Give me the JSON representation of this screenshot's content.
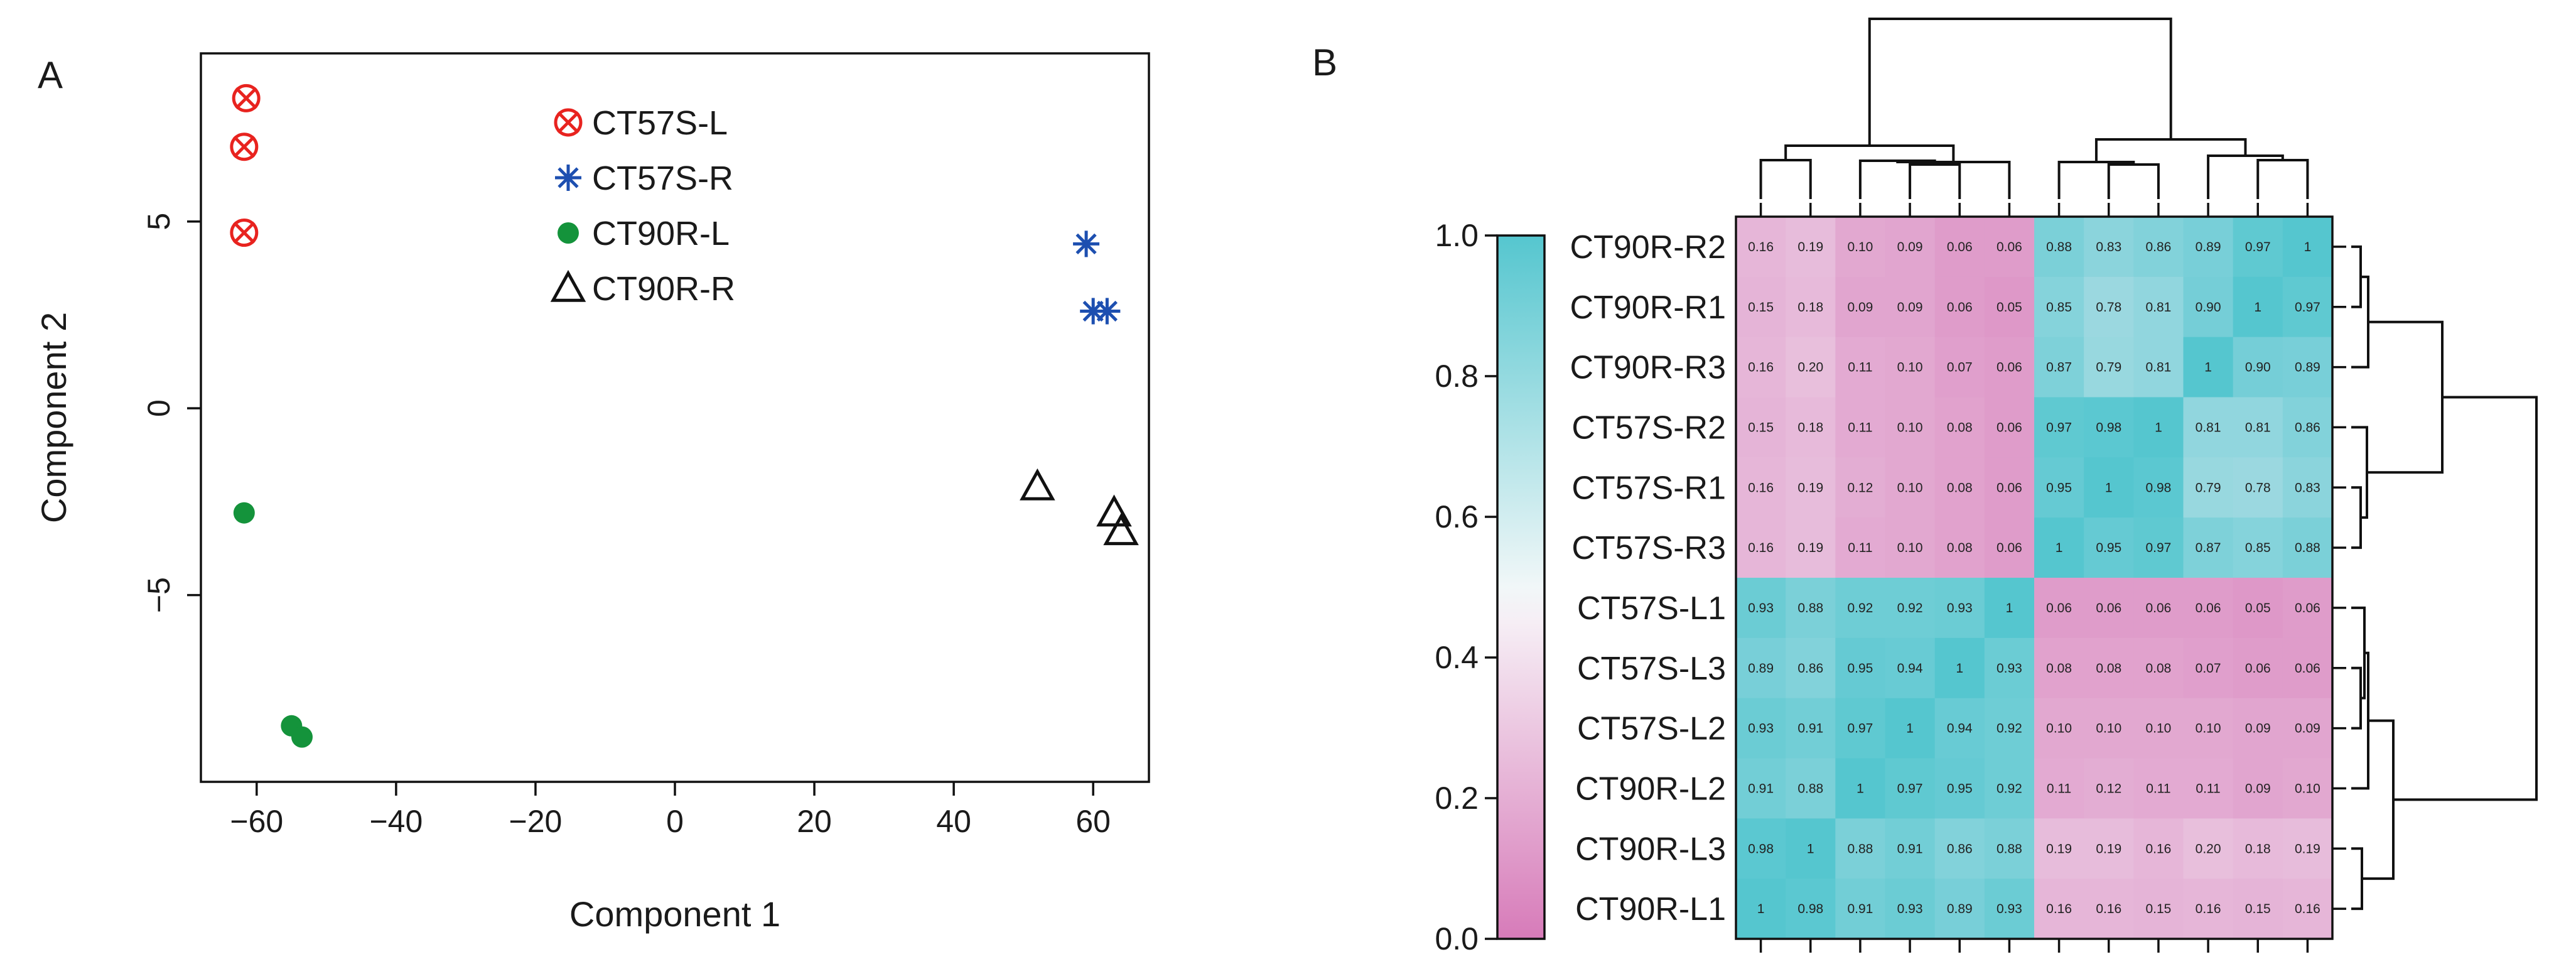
{
  "figure": {
    "panel_a_label": "A",
    "panel_b_label": "B"
  },
  "colors": {
    "s_l": "#e8231f",
    "s_r": "#1d4fb0",
    "r_l": "#14933b",
    "r_r": "#111111",
    "heat_low": "#d77bb9",
    "heat_mid": "#f4f0f6",
    "heat_high": "#55c6cf"
  },
  "chart_data": [
    {
      "type": "scatter",
      "panel": "A",
      "title": "",
      "xlabel": "Component 1",
      "ylabel": "Component 2",
      "xlim": [
        -68,
        68
      ],
      "ylim": [
        -10,
        9.5
      ],
      "xticks": [
        -60,
        -40,
        -20,
        0,
        20,
        40,
        60
      ],
      "yticks": [
        -5,
        0,
        5
      ],
      "grid": false,
      "legend_position": "top-center",
      "series": [
        {
          "name": "CT57S-L",
          "marker": "circle-x",
          "color": "#e8231f",
          "points": [
            [
              -61.5,
              8.3
            ],
            [
              -61.8,
              7.0
            ],
            [
              -61.8,
              4.7
            ]
          ]
        },
        {
          "name": "CT57S-R",
          "marker": "asterisk",
          "color": "#1d4fb0",
          "points": [
            [
              59.0,
              4.4
            ],
            [
              60.0,
              2.6
            ],
            [
              62.0,
              2.6
            ]
          ]
        },
        {
          "name": "CT90R-L",
          "marker": "filled-circle",
          "color": "#14933b",
          "points": [
            [
              -61.8,
              -2.8
            ],
            [
              -55.0,
              -8.5
            ],
            [
              -53.5,
              -8.8
            ]
          ]
        },
        {
          "name": "CT90R-R",
          "marker": "open-triangle",
          "color": "#111111",
          "points": [
            [
              52.0,
              -2.1
            ],
            [
              63.0,
              -2.8
            ],
            [
              64.0,
              -3.3
            ]
          ]
        }
      ]
    },
    {
      "type": "heatmap",
      "panel": "B",
      "title": "",
      "legend_position": "left",
      "colorbar_ticks": [
        "0.0",
        "0.2",
        "0.4",
        "0.6",
        "0.8",
        "1.0"
      ],
      "colorbar_range": [
        0.0,
        1.0
      ],
      "row_labels": [
        "CT90R-R2",
        "CT90R-R1",
        "CT90R-R3",
        "CT57S-R2",
        "CT57S-R1",
        "CT57S-R3",
        "CT57S-L1",
        "CT57S-L3",
        "CT57S-L2",
        "CT90R-L2",
        "CT90R-L3",
        "CT90R-L1"
      ],
      "values": [
        [
          "0.16",
          "0.19",
          "0.10",
          "0.09",
          "0.06",
          "0.06",
          "0.88",
          "0.83",
          "0.86",
          "0.89",
          "0.97",
          "1"
        ],
        [
          "0.15",
          "0.18",
          "0.09",
          "0.09",
          "0.06",
          "0.05",
          "0.85",
          "0.78",
          "0.81",
          "0.90",
          "1",
          "0.97"
        ],
        [
          "0.16",
          "0.20",
          "0.11",
          "0.10",
          "0.07",
          "0.06",
          "0.87",
          "0.79",
          "0.81",
          "1",
          "0.90",
          "0.89"
        ],
        [
          "0.15",
          "0.18",
          "0.11",
          "0.10",
          "0.08",
          "0.06",
          "0.97",
          "0.98",
          "1",
          "0.81",
          "0.81",
          "0.86"
        ],
        [
          "0.16",
          "0.19",
          "0.12",
          "0.10",
          "0.08",
          "0.06",
          "0.95",
          "1",
          "0.98",
          "0.79",
          "0.78",
          "0.83"
        ],
        [
          "0.16",
          "0.19",
          "0.11",
          "0.10",
          "0.08",
          "0.06",
          "1",
          "0.95",
          "0.97",
          "0.87",
          "0.85",
          "0.88"
        ],
        [
          "0.93",
          "0.88",
          "0.92",
          "0.92",
          "0.93",
          "1",
          "0.06",
          "0.06",
          "0.06",
          "0.06",
          "0.05",
          "0.06"
        ],
        [
          "0.89",
          "0.86",
          "0.95",
          "0.94",
          "1",
          "0.93",
          "0.08",
          "0.08",
          "0.08",
          "0.07",
          "0.06",
          "0.06"
        ],
        [
          "0.93",
          "0.91",
          "0.97",
          "1",
          "0.94",
          "0.92",
          "0.10",
          "0.10",
          "0.10",
          "0.10",
          "0.09",
          "0.09"
        ],
        [
          "0.91",
          "0.88",
          "1",
          "0.97",
          "0.95",
          "0.92",
          "0.11",
          "0.12",
          "0.11",
          "0.11",
          "0.09",
          "0.10"
        ],
        [
          "0.98",
          "1",
          "0.88",
          "0.91",
          "0.86",
          "0.88",
          "0.19",
          "0.19",
          "0.16",
          "0.20",
          "0.18",
          "0.19"
        ],
        [
          "1",
          "0.98",
          "0.91",
          "0.93",
          "0.89",
          "0.93",
          "0.16",
          "0.16",
          "0.15",
          "0.16",
          "0.15",
          "0.16"
        ]
      ]
    }
  ]
}
